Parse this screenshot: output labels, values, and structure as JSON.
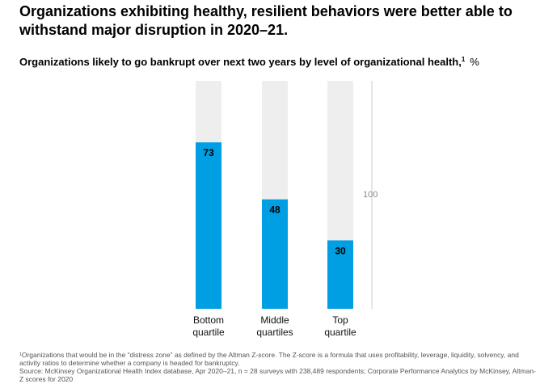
{
  "title": "Organizations exhibiting healthy, resilient behaviors were better able to withstand major disruption in 2020–21.",
  "subtitle": "Organizations likely to go bankrupt over next two years by level of organizational health,",
  "subtitle_footnote_mark": "1",
  "unit_label": "%",
  "colors": {
    "bar": "#009ee2",
    "track": "#eeeeee",
    "axis": "#cccccc"
  },
  "chart_data": {
    "type": "bar",
    "title": "Organizations likely to go bankrupt over next two years by level of organizational health",
    "ylabel": "%",
    "categories": [
      [
        "Bottom",
        "quartile"
      ],
      [
        "Middle",
        "quartiles"
      ],
      [
        "Top",
        "quartile"
      ]
    ],
    "values": [
      73,
      48,
      30
    ],
    "ylim": [
      0,
      100
    ],
    "reference_label": "100",
    "grid": false,
    "legend": "none"
  },
  "footnotes": {
    "note1": "¹Organizations that would be in the “distress zone” as defined by the Altman Z-score. The Z-score is a formula that uses profitability, leverage, liquidity, solvency, and activity ratios to determine whether a company is headed for bankruptcy.",
    "source": "Source: McKinsey Organizational Health Index database, Apr 2020–21, n = 28 surveys with 238,489 respondents; Corporate Performance Analytics by McKinsey, Altman-Z scores for 2020"
  }
}
